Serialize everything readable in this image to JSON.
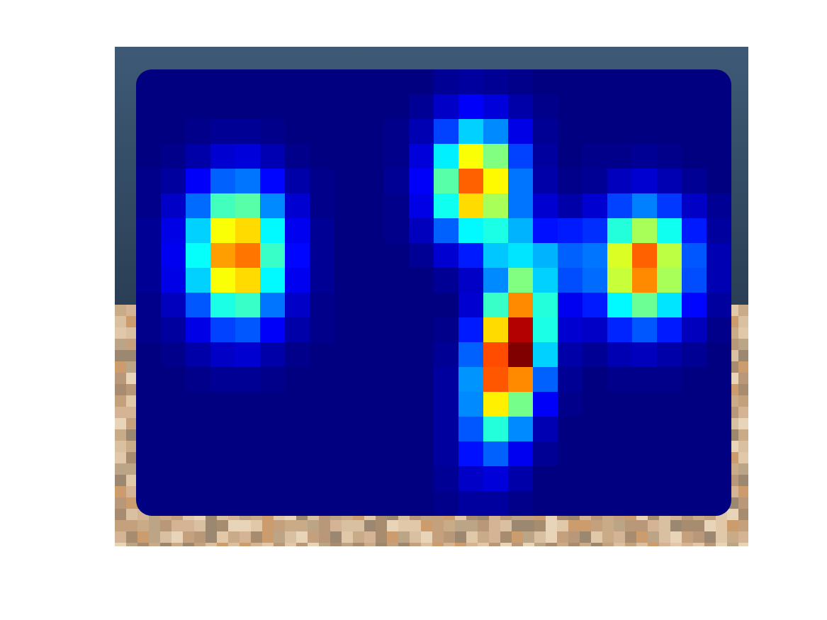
{
  "chart_data": {
    "type": "heatmap",
    "color": "jet",
    "tick_labels": false,
    "color_range": [
      0,
      100
    ],
    "cells": [
      [
        0,
        0,
        0,
        0,
        0,
        0,
        0,
        0,
        0,
        0,
        0,
        0,
        2,
        3,
        2,
        1,
        0,
        0,
        0,
        0,
        0,
        0,
        0,
        0
      ],
      [
        0,
        0,
        0,
        0,
        0,
        0,
        0,
        0,
        0,
        0,
        0,
        2,
        7,
        12,
        9,
        4,
        1,
        0,
        0,
        0,
        0,
        0,
        0,
        0
      ],
      [
        0,
        0,
        1,
        2,
        2,
        1,
        0,
        0,
        0,
        0,
        1,
        5,
        19,
        33,
        26,
        10,
        2,
        0,
        0,
        0,
        0,
        0,
        0,
        0
      ],
      [
        0,
        1,
        4,
        8,
        9,
        5,
        1,
        0,
        0,
        0,
        1,
        9,
        36,
        62,
        50,
        19,
        3,
        0,
        1,
        1,
        2,
        1,
        0,
        0
      ],
      [
        1,
        3,
        12,
        22,
        24,
        13,
        4,
        1,
        0,
        0,
        2,
        12,
        46,
        78,
        63,
        24,
        4,
        1,
        2,
        6,
        8,
        5,
        2,
        0
      ],
      [
        1,
        7,
        23,
        44,
        46,
        26,
        8,
        1,
        0,
        0,
        1,
        10,
        39,
        66,
        54,
        24,
        8,
        4,
        8,
        19,
        25,
        18,
        7,
        2
      ],
      [
        2,
        10,
        33,
        62,
        66,
        37,
        11,
        2,
        0,
        0,
        1,
        6,
        22,
        37,
        40,
        30,
        14,
        15,
        17,
        41,
        54,
        39,
        15,
        3
      ],
      [
        2,
        11,
        38,
        72,
        76,
        43,
        13,
        2,
        0,
        0,
        0,
        2,
        8,
        15,
        32,
        35,
        30,
        22,
        24,
        59,
        78,
        56,
        21,
        5
      ],
      [
        2,
        10,
        33,
        62,
        66,
        37,
        11,
        2,
        0,
        0,
        0,
        0,
        2,
        7,
        26,
        50,
        33,
        20,
        23,
        57,
        74,
        54,
        20,
        5
      ],
      [
        1,
        6,
        21,
        40,
        43,
        24,
        7,
        1,
        0,
        0,
        0,
        0,
        0,
        8,
        43,
        74,
        41,
        11,
        15,
        37,
        48,
        35,
        13,
        3
      ],
      [
        1,
        3,
        10,
        19,
        21,
        12,
        4,
        1,
        0,
        0,
        0,
        0,
        1,
        15,
        66,
        95,
        40,
        8,
        7,
        16,
        21,
        15,
        6,
        1
      ],
      [
        0,
        1,
        4,
        7,
        8,
        4,
        1,
        0,
        0,
        0,
        0,
        0,
        2,
        22,
        80,
        100,
        33,
        4,
        2,
        5,
        6,
        4,
        2,
        0
      ],
      [
        0,
        0,
        1,
        2,
        2,
        1,
        0,
        0,
        0,
        0,
        0,
        0,
        3,
        27,
        79,
        74,
        22,
        2,
        0,
        1,
        1,
        1,
        0,
        0
      ],
      [
        0,
        0,
        0,
        0,
        0,
        0,
        0,
        0,
        0,
        0,
        0,
        0,
        3,
        26,
        64,
        49,
        12,
        1,
        0,
        0,
        0,
        0,
        0,
        0
      ],
      [
        0,
        0,
        0,
        0,
        0,
        0,
        0,
        0,
        0,
        0,
        0,
        0,
        3,
        21,
        41,
        26,
        5,
        0,
        0,
        0,
        0,
        0,
        0,
        0
      ],
      [
        0,
        0,
        0,
        0,
        0,
        0,
        0,
        0,
        0,
        0,
        0,
        0,
        3,
        14,
        22,
        11,
        2,
        0,
        0,
        0,
        0,
        0,
        0,
        0
      ],
      [
        0,
        0,
        0,
        0,
        0,
        0,
        0,
        0,
        0,
        0,
        0,
        0,
        2,
        7,
        9,
        4,
        0,
        0,
        0,
        0,
        0,
        0,
        0,
        0
      ],
      [
        0,
        0,
        0,
        0,
        0,
        0,
        0,
        0,
        0,
        0,
        0,
        0,
        1,
        3,
        3,
        1,
        0,
        0,
        0,
        0,
        0,
        0,
        0,
        0
      ]
    ]
  }
}
